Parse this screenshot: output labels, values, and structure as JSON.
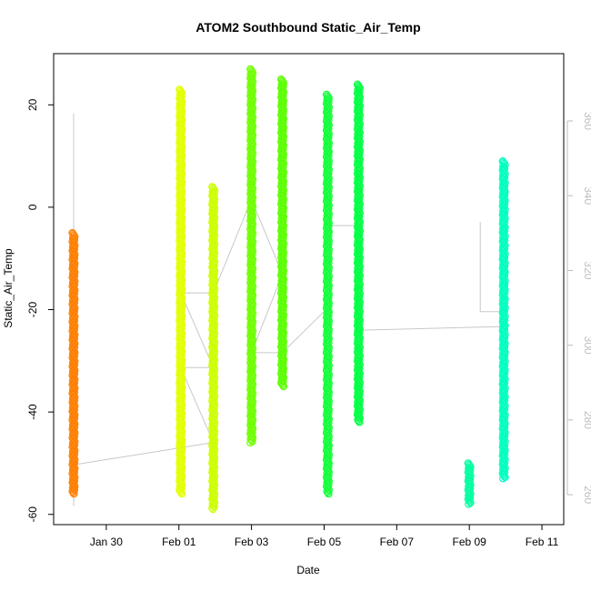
{
  "chart_data": {
    "type": "scatter",
    "title": "ATOM2 Southbound Static_Air_Temp",
    "xlabel": "Date",
    "ylabel": "Static_Air_Temp",
    "x_tick_labels": [
      "Jan 30",
      "Feb 01",
      "Feb 03",
      "Feb 05",
      "Feb 07",
      "Feb 09",
      "Feb 11"
    ],
    "x_tick_days": [
      1,
      3,
      5,
      7,
      9,
      11,
      13
    ],
    "x_range_days": [
      -0.45,
      13.6
    ],
    "y_ticks": [
      -60,
      -40,
      -20,
      0,
      20
    ],
    "ylim": [
      -62,
      30
    ],
    "y2_ticks": [
      260,
      280,
      300,
      320,
      340,
      360
    ],
    "y2lim": [
      252,
      378
    ],
    "colors": {
      "secondary": "#c8c8c8",
      "axis": "#000000",
      "secondary_axis": "#bdbdbd"
    },
    "series": [
      {
        "x": 0.1,
        "ymin": -56,
        "ymax": -5,
        "color": "#ff7f00"
      },
      {
        "x": 3.05,
        "ymin": -56,
        "ymax": 23,
        "color": "#e2ff00"
      },
      {
        "x": 3.95,
        "ymin": -59,
        "ymax": 4,
        "color": "#cdff00"
      },
      {
        "x": 5.0,
        "ymin": -46,
        "ymax": 27,
        "color": "#6fff00"
      },
      {
        "x": 5.85,
        "ymin": -35,
        "ymax": 25,
        "color": "#5aff00"
      },
      {
        "x": 7.1,
        "ymin": -56,
        "ymax": 22,
        "color": "#14ff3a"
      },
      {
        "x": 7.95,
        "ymin": -42,
        "ymax": 24,
        "color": "#00ff44"
      },
      {
        "x": 11.0,
        "ymin": -58,
        "ymax": -50,
        "color": "#00ffa0"
      },
      {
        "x": 11.95,
        "ymin": -53,
        "ymax": 9,
        "color": "#00ffc0"
      }
    ],
    "secondary_line": [
      {
        "x": 0.1,
        "y": 257
      },
      {
        "x": 0.1,
        "y": 362
      },
      {
        "x": 0.1,
        "y": 268
      },
      {
        "x": 3.95,
        "y": 274
      },
      {
        "x": 3.05,
        "y": 294
      },
      {
        "x": 3.95,
        "y": 294
      },
      {
        "x": 3.05,
        "y": 314
      },
      {
        "x": 3.95,
        "y": 314
      },
      {
        "x": 5.0,
        "y": 339
      },
      {
        "x": 5.85,
        "y": 319
      },
      {
        "x": 5.0,
        "y": 298
      },
      {
        "x": 5.85,
        "y": 298
      },
      {
        "x": 7.1,
        "y": 310
      },
      {
        "x": 7.1,
        "y": 365
      },
      {
        "x": 7.1,
        "y": 332
      },
      {
        "x": 7.95,
        "y": 332
      },
      {
        "x": 7.95,
        "y": 304
      },
      {
        "x": 11.95,
        "y": 305
      },
      {
        "x": 11.95,
        "y": 309
      },
      {
        "x": 11.3,
        "y": 309
      },
      {
        "x": 11.3,
        "y": 333
      }
    ]
  }
}
